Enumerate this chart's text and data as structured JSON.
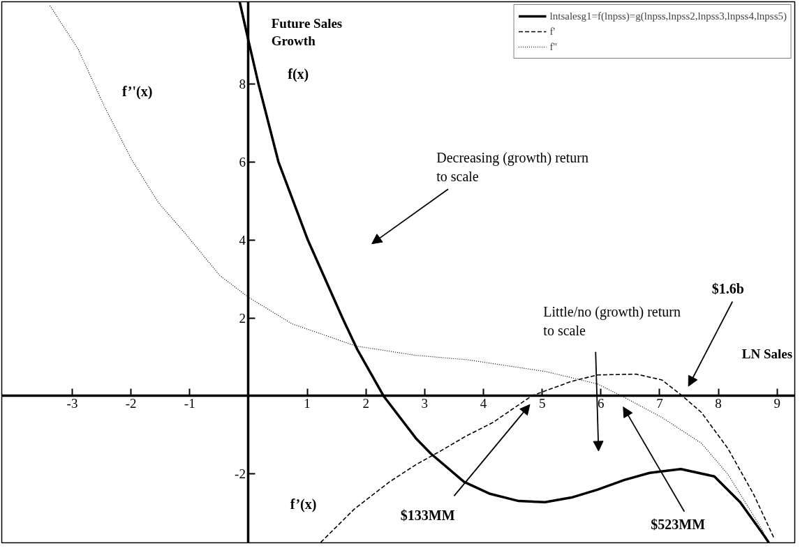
{
  "chart_data": {
    "type": "line",
    "xlabel": "LN Sales",
    "ylabel": "Future Sales\nGrowth",
    "xlim": [
      -4.2,
      9.3
    ],
    "ylim": [
      -3.76,
      10.1
    ],
    "xticks": [
      -3,
      -2,
      -1,
      1,
      2,
      3,
      4,
      5,
      6,
      7,
      8,
      9
    ],
    "yticks": [
      -2,
      2,
      4,
      6,
      8
    ],
    "grid": false,
    "legend": "top right",
    "series": [
      {
        "name": "lntsalesg1=f(lnpss)=g(lnpss,lnpss2,lnpss3,lnpss4,lnpss5)",
        "color": "#000000",
        "line_style": "solid",
        "x": [
          -0.15,
          0,
          0.17,
          0.51,
          1.01,
          1.6,
          1.85,
          2.3,
          2.86,
          3.1,
          3.67,
          4.1,
          4.6,
          5.05,
          5.5,
          5.94,
          6.4,
          6.83,
          7.36,
          7.93,
          8.37,
          8.78,
          8.86
        ],
        "values": [
          10.1,
          9.1,
          8,
          6,
          4,
          2,
          1.2,
          0,
          -1.1,
          -1.47,
          -2.2,
          -2.5,
          -2.69,
          -2.72,
          -2.6,
          -2.4,
          -2.15,
          -1.97,
          -1.87,
          -2.06,
          -2.72,
          -3.58,
          -3.76
        ]
      },
      {
        "name": "f'",
        "color": "#000000",
        "line_style": "dashed",
        "x": [
          1.23,
          1.8,
          2.4,
          2.86,
          3.27,
          3.7,
          4.16,
          4.5,
          4.83,
          5.49,
          5.94,
          6.6,
          7.04,
          7.38,
          7.71,
          8.16,
          8.6,
          8.95
        ],
        "values": [
          -3.75,
          -2.9,
          -2.2,
          -1.75,
          -1.41,
          -1.03,
          -0.68,
          -0.33,
          0.01,
          0.37,
          0.54,
          0.56,
          0.41,
          0.01,
          -0.42,
          -1.34,
          -2.52,
          -3.65
        ]
      },
      {
        "name": "f''",
        "color": "#000000",
        "line_style": "dotted",
        "x": [
          -3.38,
          -2.9,
          -2.45,
          -1.99,
          -1.54,
          -1.08,
          -0.49,
          0,
          0.74,
          1.83,
          2.86,
          3.72,
          5.05,
          5.94,
          6.38,
          7.04,
          7.71,
          8.16,
          8.78
        ],
        "values": [
          10.0,
          8.89,
          7.41,
          6.06,
          4.97,
          4.17,
          3.09,
          2.53,
          1.85,
          1.28,
          1.04,
          0.93,
          0.63,
          0.31,
          -0.02,
          -0.55,
          -1.21,
          -2.0,
          -3.51
        ]
      }
    ],
    "annotations": [
      "f(x)",
      "f’'(x)",
      "f’(x)",
      "Decreasing (growth) return\nto scale",
      "Little/no (growth) return\nto scale",
      "$1.6b",
      "$133MM",
      "$523MM"
    ]
  }
}
